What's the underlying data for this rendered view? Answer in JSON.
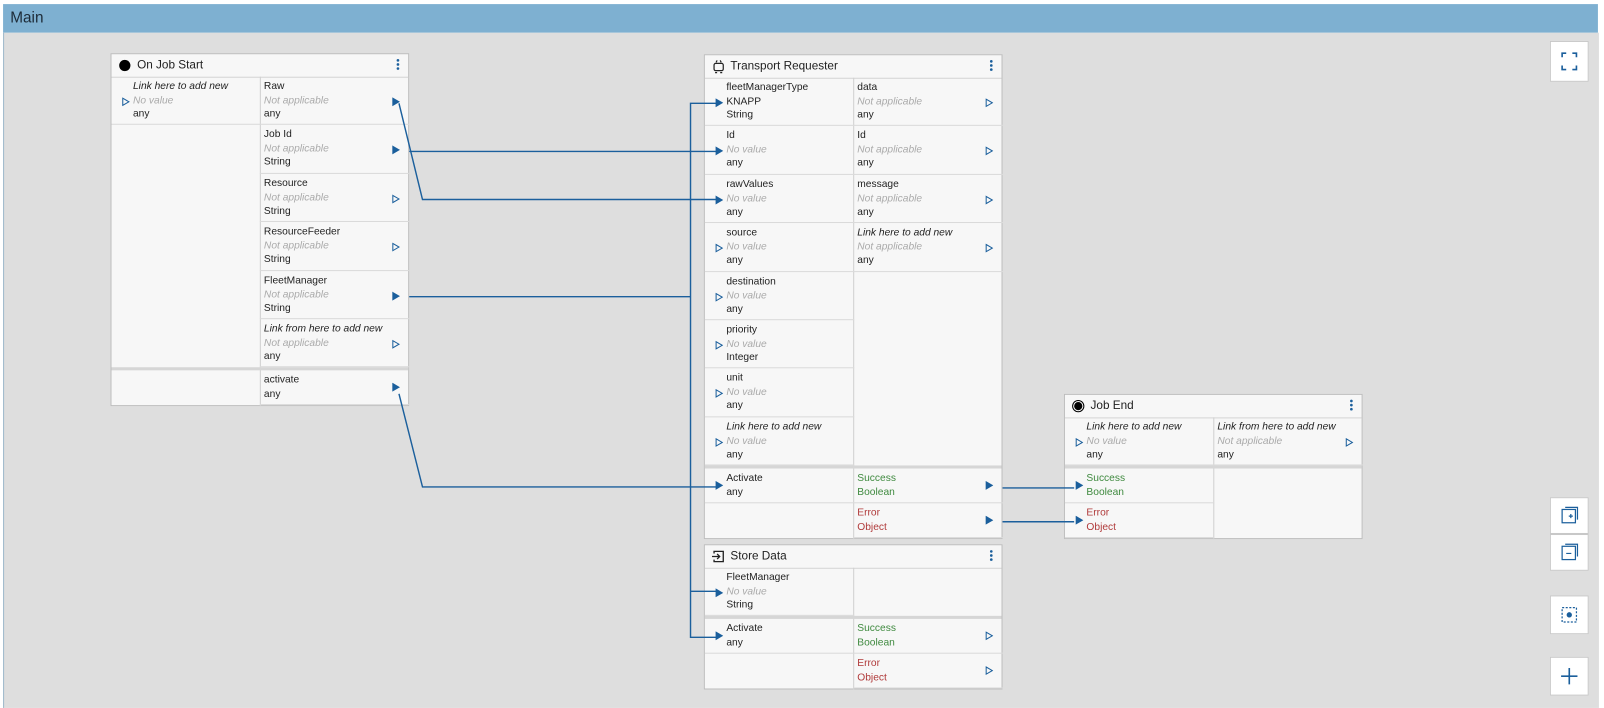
{
  "header": {
    "title": "Main"
  },
  "nodes": [
    {
      "title": "On Job Start",
      "inputs": [
        {
          "name": "Link here to add new",
          "value": "No value",
          "type": "any"
        }
      ],
      "outputs": [
        {
          "name": "Raw",
          "value": "Not applicable",
          "type": "any"
        },
        {
          "name": "Job Id",
          "value": "Not applicable",
          "type": "String"
        },
        {
          "name": "Resource",
          "value": "Not applicable",
          "type": "String"
        },
        {
          "name": "ResourceFeeder",
          "value": "Not applicable",
          "type": "String"
        },
        {
          "name": "FleetManager",
          "value": "Not applicable",
          "type": "String"
        },
        {
          "name": "Link from here to add new",
          "value": "Not applicable",
          "type": "any"
        }
      ],
      "control_inputs": [],
      "control_outputs": [
        {
          "name": "activate",
          "type": "any"
        }
      ]
    },
    {
      "title": "Transport Requester",
      "inputs": [
        {
          "name": "fleetManagerType",
          "value": "KNAPP",
          "type": "String"
        },
        {
          "name": "Id",
          "value": "No value",
          "type": "any"
        },
        {
          "name": "rawValues",
          "value": "No value",
          "type": "any"
        },
        {
          "name": "source",
          "value": "No value",
          "type": "any"
        },
        {
          "name": "destination",
          "value": "No value",
          "type": "any"
        },
        {
          "name": "priority",
          "value": "No value",
          "type": "Integer"
        },
        {
          "name": "unit",
          "value": "No value",
          "type": "any"
        },
        {
          "name": "Link here to add new",
          "value": "No value",
          "type": "any"
        }
      ],
      "outputs": [
        {
          "name": "data",
          "value": "Not applicable",
          "type": "any"
        },
        {
          "name": "Id",
          "value": "Not applicable",
          "type": "any"
        },
        {
          "name": "message",
          "value": "Not applicable",
          "type": "any"
        },
        {
          "name": "Link here to add new",
          "value": "Not applicable",
          "type": "any"
        }
      ],
      "control_inputs": [
        {
          "name": "Activate",
          "type": "any"
        }
      ],
      "control_outputs": [
        {
          "name": "Success",
          "type": "Boolean",
          "color": "#3f8a3f"
        },
        {
          "name": "Error",
          "type": "Object",
          "color": "#b03a3a"
        }
      ]
    },
    {
      "title": "Store Data",
      "inputs": [
        {
          "name": "FleetManager",
          "value": "No value",
          "type": "String"
        }
      ],
      "outputs": [],
      "control_inputs": [
        {
          "name": "Activate",
          "type": "any"
        }
      ],
      "control_outputs": [
        {
          "name": "Success",
          "type": "Boolean",
          "color": "#3f8a3f"
        },
        {
          "name": "Error",
          "type": "Object",
          "color": "#b03a3a"
        }
      ]
    },
    {
      "title": "Job End",
      "inputs": [
        {
          "name": "Link here to add new",
          "value": "No value",
          "type": "any"
        }
      ],
      "outputs": [
        {
          "name": "Link from here to add new",
          "value": "Not applicable",
          "type": "any"
        }
      ],
      "control_inputs": [
        {
          "name": "Success",
          "type": "Boolean",
          "color": "#3f8a3f"
        },
        {
          "name": "Error",
          "type": "Object",
          "color": "#b03a3a"
        }
      ],
      "control_outputs": []
    }
  ]
}
